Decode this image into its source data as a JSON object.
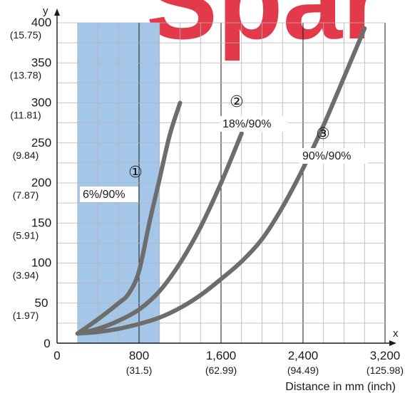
{
  "chart_data": {
    "type": "line",
    "xlabel": "Distance in mm (inch)",
    "x_axis_letter": "x",
    "y_axis_letter": "y",
    "xlim": [
      0,
      3200
    ],
    "ylim": [
      0,
      400
    ],
    "x_ticks": [
      {
        "value": 0,
        "label": "0",
        "sub": ""
      },
      {
        "value": 800,
        "label": "800",
        "sub": "(31.5)"
      },
      {
        "value": 1600,
        "label": "1,600",
        "sub": "(62.99)"
      },
      {
        "value": 2400,
        "label": "2,400",
        "sub": "(94.49)"
      },
      {
        "value": 3200,
        "label": "3,200",
        "sub": "(125.98)"
      }
    ],
    "y_ticks": [
      {
        "value": 0,
        "label": "0",
        "sub": ""
      },
      {
        "value": 50,
        "label": "50",
        "sub": "(1.97)"
      },
      {
        "value": 100,
        "label": "100",
        "sub": "(3.94)"
      },
      {
        "value": 150,
        "label": "150",
        "sub": "(5.91)"
      },
      {
        "value": 200,
        "label": "200",
        "sub": "(7.87)"
      },
      {
        "value": 250,
        "label": "250",
        "sub": "(9.84)"
      },
      {
        "value": 300,
        "label": "300",
        "sub": "(11.81)"
      },
      {
        "value": 350,
        "label": "350",
        "sub": "(13.78)"
      },
      {
        "value": 400,
        "label": "400",
        "sub": "(15.75)"
      }
    ],
    "grid": true,
    "minor_grid_step": {
      "x": 200,
      "y": 25
    },
    "highlight_band": {
      "x_from": 200,
      "x_to": 1000,
      "color": "#a4c6e8"
    },
    "series": [
      {
        "number": "①",
        "label": "6%/90%",
        "x": [
          200,
          400,
          600,
          700,
          800,
          900,
          1000,
          1100,
          1200
        ],
        "y": [
          12,
          30,
          50,
          62,
          90,
          150,
          205,
          260,
          300
        ]
      },
      {
        "number": "②",
        "label": "18%/90%",
        "x": [
          200,
          400,
          600,
          800,
          1000,
          1200,
          1400,
          1600,
          1800
        ],
        "y": [
          12,
          18,
          28,
          42,
          65,
          100,
          145,
          200,
          262
        ]
      },
      {
        "number": "③",
        "label": "90%/90%",
        "x": [
          200,
          400,
          600,
          800,
          1000,
          1200,
          1400,
          1600,
          1800,
          2000,
          2200,
          2400,
          2600,
          2800,
          3000
        ],
        "y": [
          12,
          14,
          18,
          24,
          32,
          44,
          60,
          80,
          102,
          130,
          170,
          218,
          272,
          332,
          393
        ]
      }
    ],
    "colors": {
      "series_line": "#6d6d6d",
      "grid": "#b5b5b5",
      "axis": "#1a1a1a",
      "watermark": "#e23a4a"
    }
  },
  "watermark": {
    "text": "Spar"
  }
}
